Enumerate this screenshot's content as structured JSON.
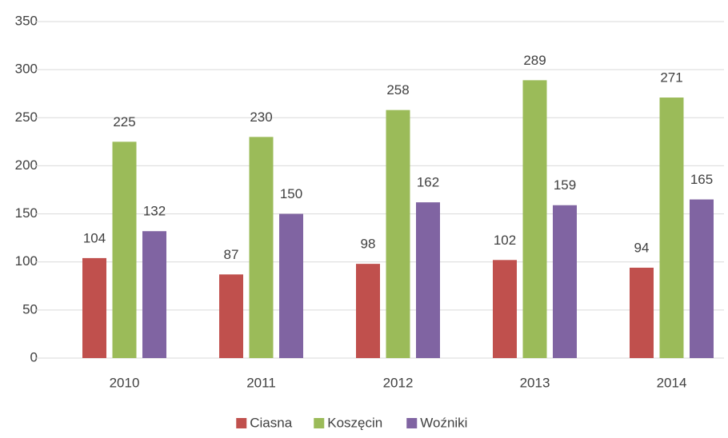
{
  "chart_data": {
    "type": "bar",
    "categories": [
      "2010",
      "2011",
      "2012",
      "2013",
      "2014"
    ],
    "series": [
      {
        "name": "Ciasna",
        "color": "#c0504d",
        "values": [
          104,
          87,
          98,
          102,
          94
        ]
      },
      {
        "name": "Koszęcin",
        "color": "#9bbb59",
        "values": [
          225,
          230,
          258,
          289,
          271
        ]
      },
      {
        "name": "Woźniki",
        "color": "#8064a2",
        "values": [
          132,
          150,
          162,
          159,
          165
        ]
      }
    ],
    "ylim": [
      0,
      350
    ],
    "yticks": [
      0,
      50,
      100,
      150,
      200,
      250,
      300,
      350
    ],
    "grid": true,
    "legend": "bottom"
  }
}
